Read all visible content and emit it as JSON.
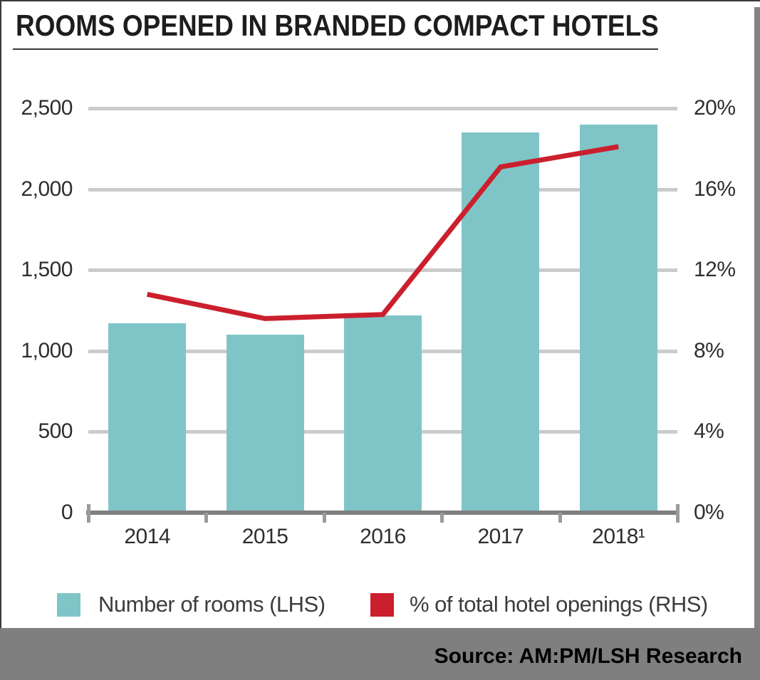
{
  "title": "ROOMS OPENED IN BRANDED COMPACT HOTELS",
  "source": "Source: AM:PM/LSH Research",
  "colors": {
    "bar": "#7fc5c8",
    "line": "#cb1f2d",
    "grid": "#cbcbcb",
    "axis": "#7f7f7f",
    "band": "#7f7f7f",
    "border": "#3a3a3a",
    "shadow": "#838383",
    "text": "#2e2e2d"
  },
  "legend": [
    {
      "label": "Number of rooms (LHS)",
      "swatch": "#7fc5c8"
    },
    {
      "label": "% of total hotel openings (RHS)",
      "swatch": "#cb1f2d"
    }
  ],
  "chart_data": {
    "type": "bar",
    "subtype": "bar-and-line-combo",
    "title": "ROOMS OPENED IN BRANDED COMPACT HOTELS",
    "categories": [
      "2014",
      "2015",
      "2016",
      "2017",
      "2018¹"
    ],
    "series": [
      {
        "name": "Number of rooms (LHS)",
        "type": "bar",
        "axis": "left",
        "color": "#7fc5c8",
        "values": [
          1170,
          1100,
          1220,
          2350,
          2400
        ]
      },
      {
        "name": "% of total hotel openings (RHS)",
        "type": "line",
        "axis": "right",
        "color": "#cb1f2d",
        "values": [
          10.8,
          9.6,
          9.8,
          17.1,
          18.1
        ]
      }
    ],
    "left_axis": {
      "label": "",
      "min": 0,
      "max": 2500,
      "ticks": [
        "0",
        "500",
        "1,000",
        "1,500",
        "2,000",
        "2,500"
      ]
    },
    "right_axis": {
      "label": "",
      "min": 0,
      "max": 20,
      "ticks": [
        "0%",
        "4%",
        "8%",
        "12%",
        "16%",
        "20%"
      ]
    },
    "grid": true,
    "legend_position": "bottom"
  }
}
